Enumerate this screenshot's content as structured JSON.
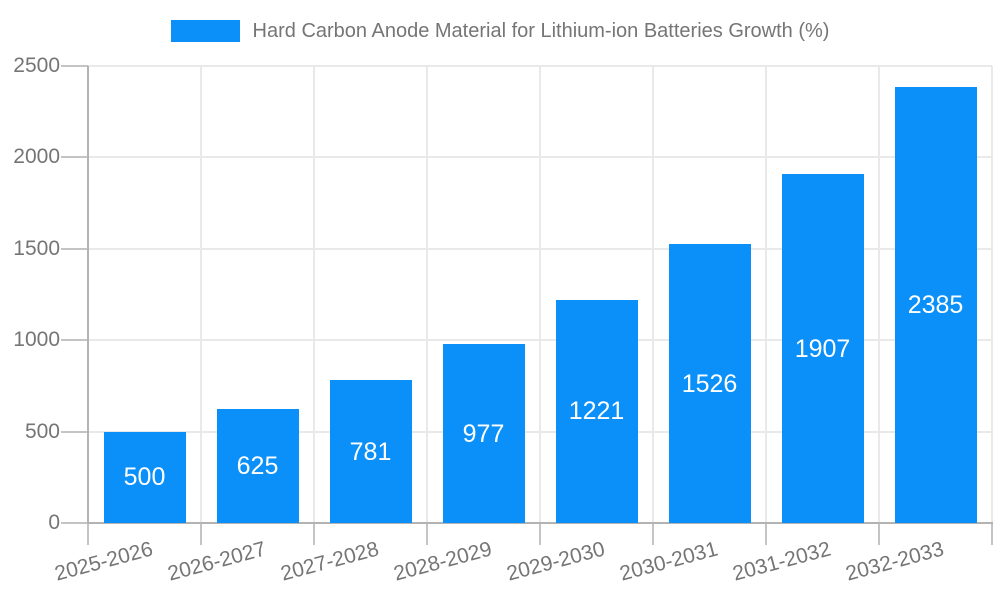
{
  "chart_data": {
    "type": "bar",
    "title": "Hard Carbon Anode Material for Lithium-ion Batteries Growth (%)",
    "legend_position": "top",
    "categories": [
      "2025-2026",
      "2026-2027",
      "2027-2028",
      "2028-2029",
      "2029-2030",
      "2030-2031",
      "2031-2032",
      "2032-2033"
    ],
    "series": [
      {
        "name": "Hard Carbon Anode Material for Lithium-ion Batteries Growth (%)",
        "values": [
          500,
          625,
          781,
          977,
          1221,
          1526,
          1907,
          2385
        ]
      }
    ],
    "xlabel": "",
    "ylabel": "",
    "ylim": [
      0,
      2500
    ],
    "y_ticks": [
      0,
      500,
      1000,
      1500,
      2000,
      2500
    ],
    "grid": {
      "horizontal": true,
      "vertical": true
    },
    "x_tick_rotation_deg": -15,
    "value_labels_position": "inside-center",
    "colors": {
      "bar": "#0a90f8",
      "axis_text": "#757575",
      "gridline": "#e9e9e9",
      "axis_line": "#b3b3b3",
      "tick": "#c4c4c4",
      "value_label": "#ffffff",
      "background": "#ffffff"
    }
  }
}
